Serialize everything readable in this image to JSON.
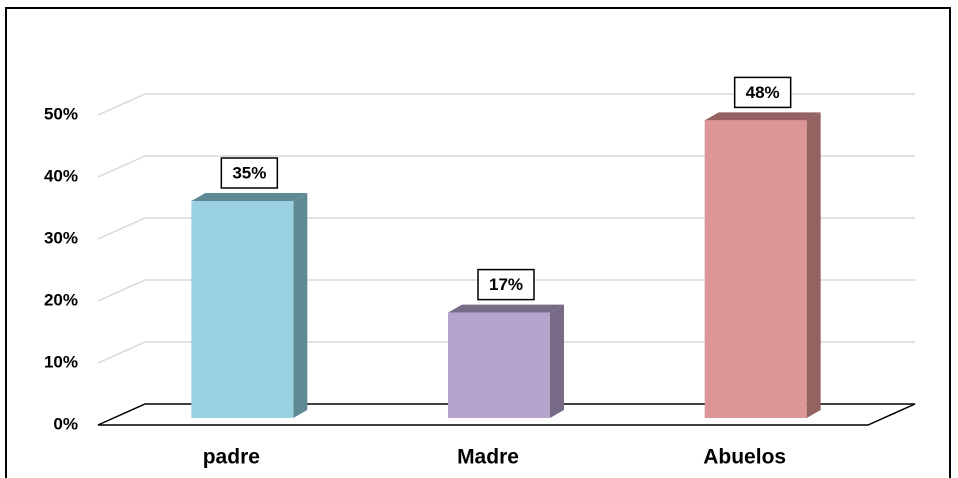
{
  "chart_data": {
    "type": "bar3d",
    "categories": [
      "padre",
      "Madre",
      "Abuelos"
    ],
    "values": [
      35,
      17,
      48
    ],
    "value_labels": [
      "35%",
      "17%",
      "48%"
    ],
    "colors": [
      "#99d1e2",
      "#b5a4cc",
      "#dc9695"
    ],
    "side_colors": [
      "#5f8a93",
      "#776b88",
      "#936261"
    ],
    "ylim": [
      0,
      50
    ],
    "yticks": [
      {
        "value": 0,
        "label": "0%"
      },
      {
        "value": 10,
        "label": "10%"
      },
      {
        "value": 20,
        "label": "20%"
      },
      {
        "value": 30,
        "label": "30%"
      },
      {
        "value": 40,
        "label": "40%"
      },
      {
        "value": 50,
        "label": "50%"
      }
    ],
    "grid": true
  }
}
